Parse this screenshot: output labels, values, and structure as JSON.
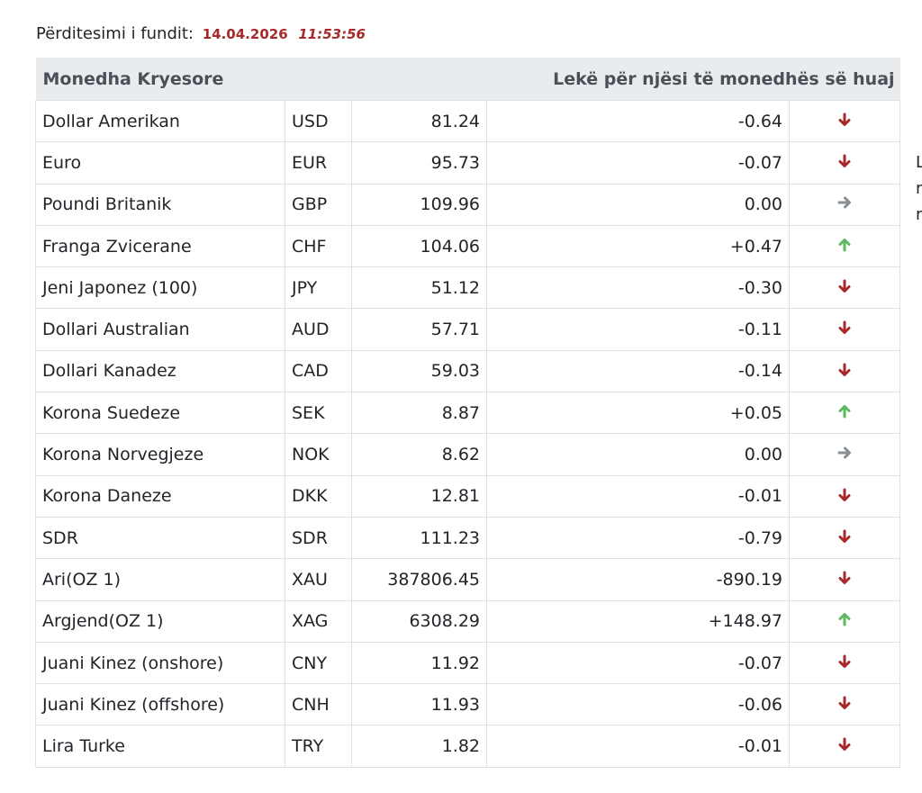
{
  "header": {
    "updated_label": "Përditesimi i fundit:",
    "date": "14.04.2026",
    "time": "11:53:56"
  },
  "table": {
    "title": "Monedha Kryesore",
    "unit_header": "Lekë për njësi të monedhës së huaj",
    "rows": [
      {
        "name": "Dollar Amerikan",
        "code": "USD",
        "rate": "81.24",
        "change": "-0.64",
        "trend": "down"
      },
      {
        "name": "Euro",
        "code": "EUR",
        "rate": "95.73",
        "change": "-0.07",
        "trend": "down"
      },
      {
        "name": "Poundi Britanik",
        "code": "GBP",
        "rate": "109.96",
        "change": "0.00",
        "trend": "flat"
      },
      {
        "name": "Franga Zvicerane",
        "code": "CHF",
        "rate": "104.06",
        "change": "+0.47",
        "trend": "up"
      },
      {
        "name": "Jeni Japonez (100)",
        "code": "JPY",
        "rate": "51.12",
        "change": "-0.30",
        "trend": "down"
      },
      {
        "name": "Dollari Australian",
        "code": "AUD",
        "rate": "57.71",
        "change": "-0.11",
        "trend": "down"
      },
      {
        "name": "Dollari Kanadez",
        "code": "CAD",
        "rate": "59.03",
        "change": "-0.14",
        "trend": "down"
      },
      {
        "name": "Korona Suedeze",
        "code": "SEK",
        "rate": "8.87",
        "change": "+0.05",
        "trend": "up"
      },
      {
        "name": "Korona Norvegjeze",
        "code": "NOK",
        "rate": "8.62",
        "change": "0.00",
        "trend": "flat"
      },
      {
        "name": "Korona Daneze",
        "code": "DKK",
        "rate": "12.81",
        "change": "-0.01",
        "trend": "down"
      },
      {
        "name": "SDR",
        "code": "SDR",
        "rate": "111.23",
        "change": "-0.79",
        "trend": "down"
      },
      {
        "name": "Ari(OZ 1)",
        "code": "XAU",
        "rate": "387806.45",
        "change": "-890.19",
        "trend": "down"
      },
      {
        "name": "Argjend(OZ 1)",
        "code": "XAG",
        "rate": "6308.29",
        "change": "+148.97",
        "trend": "up"
      },
      {
        "name": "Juani Kinez (onshore)",
        "code": "CNY",
        "rate": "11.92",
        "change": "-0.07",
        "trend": "down"
      },
      {
        "name": "Juani Kinez (offshore)",
        "code": "CNH",
        "rate": "11.93",
        "change": "-0.06",
        "trend": "down"
      },
      {
        "name": "Lira Turke",
        "code": "TRY",
        "rate": "1.82",
        "change": "-0.01",
        "trend": "down"
      }
    ]
  },
  "clipped_side_text": [
    "L",
    "r",
    "r"
  ],
  "colors": {
    "down": "#a62a2a",
    "up": "#5cb85c",
    "flat": "#8a8f94",
    "date_text": "#a62a2a",
    "header_bg": "#e9ecef"
  },
  "icons": {
    "down": "arrow-down-icon",
    "up": "arrow-up-icon",
    "flat": "arrow-right-icon"
  }
}
